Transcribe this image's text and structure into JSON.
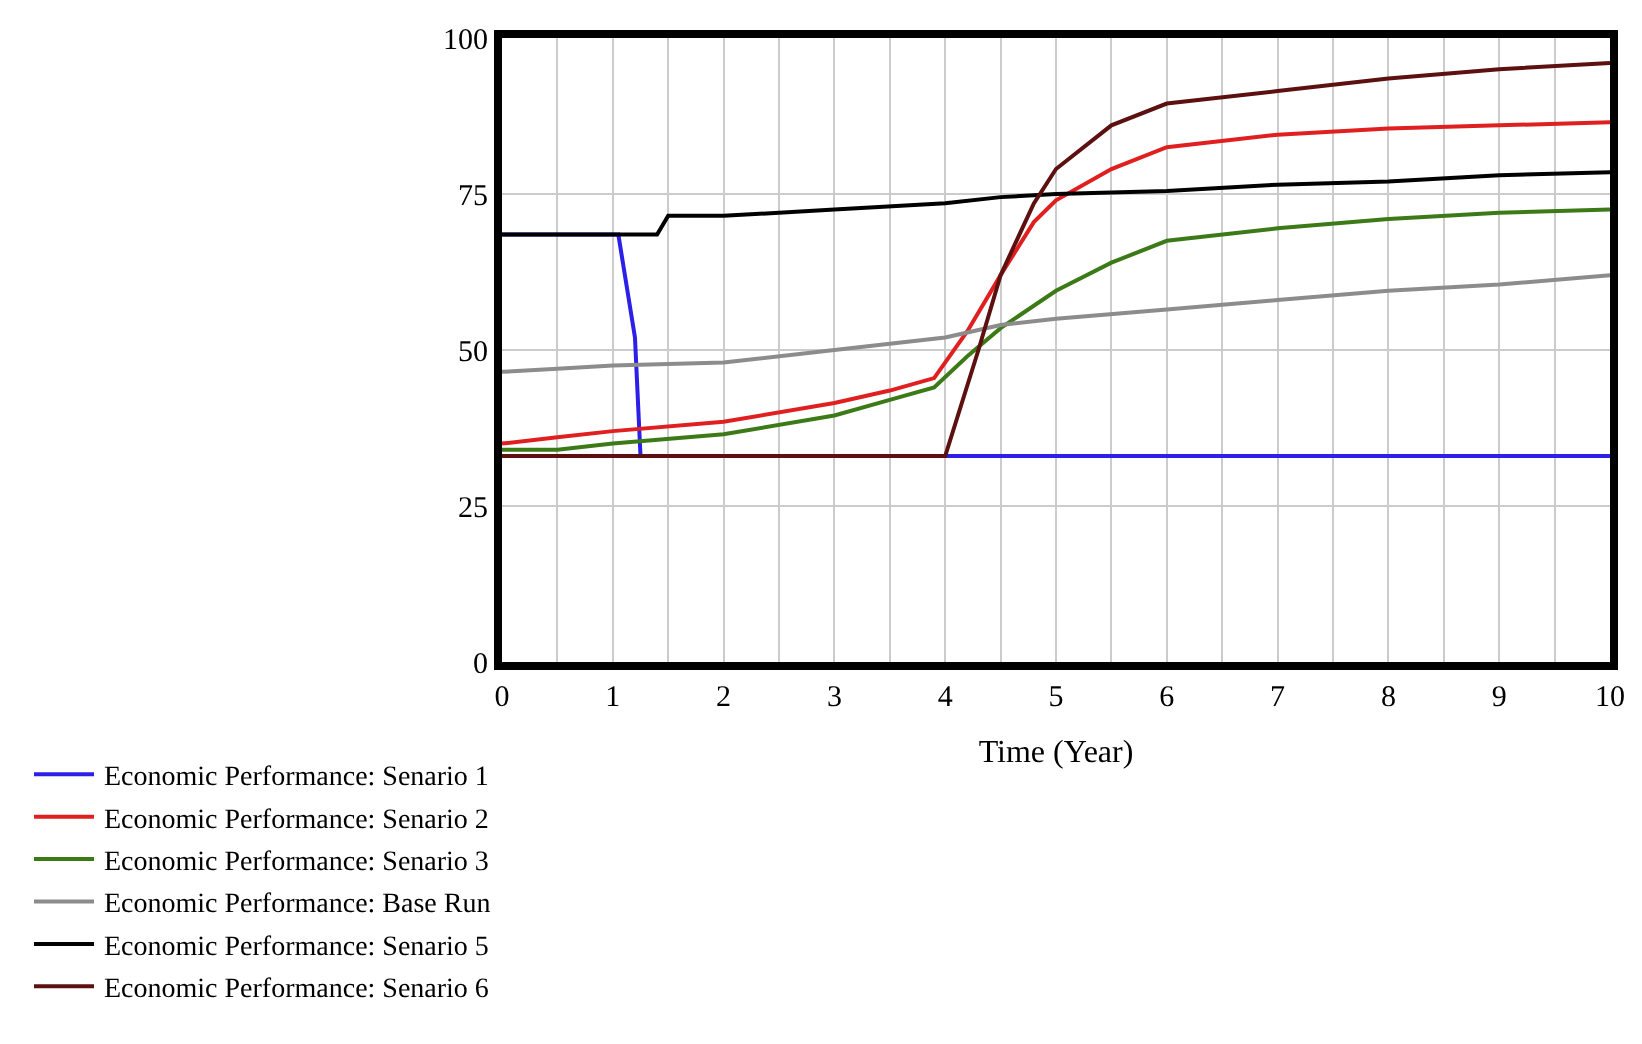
{
  "chart_data": {
    "type": "line",
    "xlabel": "Time (Year)",
    "xlim": [
      0,
      10
    ],
    "ylim": [
      0,
      100
    ],
    "xticks": [
      0,
      {
        "value": 0.5,
        "label": null
      },
      1,
      {
        "value": 1.5,
        "label": null
      },
      2,
      {
        "value": 2.5,
        "label": null
      },
      3,
      {
        "value": 3.5,
        "label": null
      },
      4,
      {
        "value": 4.5,
        "label": null
      },
      5,
      {
        "value": 5.5,
        "label": null
      },
      6,
      {
        "value": 6.5,
        "label": null
      },
      7,
      {
        "value": 7.5,
        "label": null
      },
      8,
      {
        "value": 8.5,
        "label": null
      },
      9,
      {
        "value": 9.5,
        "label": null
      },
      10
    ],
    "yticks": [
      0,
      25,
      50,
      75,
      100
    ],
    "grid": true,
    "legend": "bottom",
    "marker": "none",
    "line_style": "solid",
    "series": [
      {
        "name": "Economic Performance: Senario 1",
        "color": "#2b1fe8",
        "x": [
          0,
          1.05,
          1.2,
          1.25,
          10
        ],
        "values": [
          68.5,
          68.5,
          52,
          33,
          33
        ]
      },
      {
        "name": "Economic Performance: Senario 2",
        "color": "#e02020",
        "x": [
          0,
          0.5,
          1,
          2,
          3,
          3.5,
          3.9,
          4.2,
          4.5,
          4.8,
          5,
          5.5,
          6,
          7,
          8,
          9,
          10
        ],
        "values": [
          35,
          36,
          37,
          38.5,
          41.5,
          43.5,
          45.5,
          53,
          62,
          70.5,
          74,
          79,
          82.5,
          84.5,
          85.5,
          86,
          86.5
        ]
      },
      {
        "name": "Economic Performance: Senario 3",
        "color": "#3c7a18",
        "x": [
          0,
          0.5,
          1,
          2,
          3,
          3.5,
          3.9,
          4.2,
          4.5,
          5,
          5.5,
          6,
          7,
          8,
          9,
          10
        ],
        "values": [
          34,
          34,
          35,
          36.5,
          39.5,
          42,
          44,
          49,
          53.5,
          59.5,
          64,
          67.5,
          69.5,
          71,
          72,
          72.5
        ]
      },
      {
        "name": "Economic Performance: Base Run",
        "color": "#8c8c8c",
        "x": [
          0,
          0.5,
          1,
          2,
          3,
          4,
          4.5,
          5,
          6,
          7,
          8,
          9,
          10
        ],
        "values": [
          46.5,
          47,
          47.5,
          48,
          50,
          52,
          54,
          55,
          56.5,
          58,
          59.5,
          60.5,
          62
        ]
      },
      {
        "name": "Economic Performance: Senario 5",
        "color": "#000000",
        "x": [
          0,
          1.4,
          1.5,
          2,
          3,
          4,
          4.5,
          5,
          6,
          7,
          8,
          9,
          10
        ],
        "values": [
          68.5,
          68.5,
          71.5,
          71.5,
          72.5,
          73.5,
          74.5,
          75,
          75.5,
          76.5,
          77,
          78,
          78.5
        ]
      },
      {
        "name": "Economic Performance: Senario 6",
        "color": "#5c1010",
        "x": [
          0,
          4,
          4.3,
          4.5,
          4.8,
          5,
          5.5,
          6,
          7,
          8,
          9,
          10
        ],
        "values": [
          33,
          33,
          50,
          62,
          73.5,
          79,
          86,
          89.5,
          91.5,
          93.5,
          95,
          96
        ]
      }
    ]
  }
}
